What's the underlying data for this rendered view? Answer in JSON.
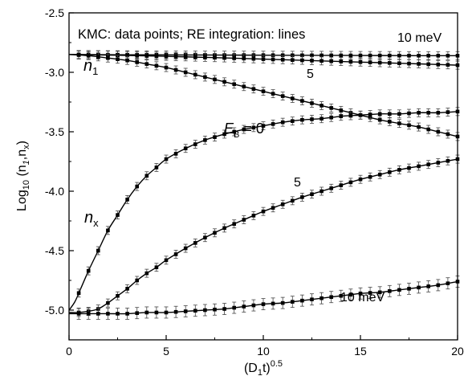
{
  "chart_data": {
    "type": "line",
    "annotation": "KMC: data points; RE integration: lines",
    "xlim": [
      0,
      20
    ],
    "ylim": [
      -5.25,
      -2.5
    ],
    "x_ticks": [
      0,
      5,
      10,
      15,
      20
    ],
    "y_ticks": [
      -2.5,
      -3.0,
      -3.5,
      -4.0,
      -4.5,
      -5.0
    ],
    "x_tick_labels": [
      "0",
      "5",
      "10",
      "15",
      "20"
    ],
    "y_tick_labels": [
      "-2.5",
      "-3.0",
      "-3.5",
      "-4.0",
      "-4.5",
      "-5.0"
    ],
    "xlabel": {
      "base": "(D",
      "sub": "1",
      "mid": "t)",
      "sup": "0.5"
    },
    "ylabel": {
      "base": "Log",
      "sub": "10",
      "rest": " (n",
      "sub2": "1",
      "rest2": ",n",
      "sub3": "x",
      "close": ")"
    },
    "labels": {
      "n1": {
        "main": "n",
        "sub": "1"
      },
      "nx": {
        "main": "n",
        "sub": "x"
      },
      "eb": {
        "main": "E",
        "sub": "B",
        "rest": " = 0"
      },
      "n1_5": "5",
      "n1_10": "10 meV",
      "nx_5": "5",
      "nx_10": "10 meV"
    },
    "series": [
      {
        "group": "n1",
        "eb_meV": 10,
        "x": [
          0,
          2,
          4,
          6,
          8,
          10,
          12,
          14,
          16,
          18,
          20
        ],
        "y": [
          -2.85,
          -2.852,
          -2.853,
          -2.854,
          -2.855,
          -2.856,
          -2.857,
          -2.858,
          -2.859,
          -2.86,
          -2.86
        ]
      },
      {
        "group": "n1",
        "eb_meV": 5,
        "x": [
          0,
          2,
          4,
          6,
          8,
          10,
          12,
          14,
          16,
          18,
          20
        ],
        "y": [
          -2.85,
          -2.855,
          -2.862,
          -2.87,
          -2.879,
          -2.889,
          -2.899,
          -2.909,
          -2.919,
          -2.929,
          -2.94
        ]
      },
      {
        "group": "n1",
        "eb_meV": 0,
        "x": [
          0,
          1,
          2,
          3,
          4,
          5,
          6,
          7,
          8,
          9,
          10,
          11,
          12,
          13,
          14,
          15,
          16,
          17,
          18,
          19,
          20
        ],
        "y": [
          -2.85,
          -2.86,
          -2.88,
          -2.9,
          -2.93,
          -2.96,
          -3.0,
          -3.04,
          -3.08,
          -3.12,
          -3.16,
          -3.2,
          -3.24,
          -3.28,
          -3.32,
          -3.36,
          -3.4,
          -3.43,
          -3.46,
          -3.5,
          -3.54
        ]
      },
      {
        "group": "nx",
        "eb_meV": 0,
        "x": [
          0,
          0.3,
          0.6,
          1,
          1.5,
          2,
          2.5,
          3,
          3.5,
          4,
          4.5,
          5,
          6,
          7,
          8,
          9,
          10,
          11,
          12,
          13,
          14,
          15,
          16,
          17,
          18,
          19,
          20
        ],
        "y": [
          -5.0,
          -4.93,
          -4.82,
          -4.67,
          -4.5,
          -4.33,
          -4.2,
          -4.07,
          -3.96,
          -3.87,
          -3.8,
          -3.73,
          -3.64,
          -3.57,
          -3.52,
          -3.48,
          -3.45,
          -3.42,
          -3.4,
          -3.39,
          -3.37,
          -3.36,
          -3.35,
          -3.35,
          -3.34,
          -3.34,
          -3.33
        ]
      },
      {
        "group": "nx",
        "eb_meV": 5,
        "x": [
          0,
          0.5,
          1,
          1.5,
          2,
          2.5,
          3,
          3.5,
          4,
          4.5,
          5,
          6,
          7,
          8,
          9,
          10,
          11,
          12,
          13,
          14,
          15,
          16,
          17,
          18,
          19,
          20
        ],
        "y": [
          -5.02,
          -5.02,
          -5.01,
          -4.99,
          -4.94,
          -4.88,
          -4.82,
          -4.75,
          -4.69,
          -4.64,
          -4.58,
          -4.48,
          -4.39,
          -4.31,
          -4.24,
          -4.17,
          -4.11,
          -4.05,
          -4.0,
          -3.95,
          -3.9,
          -3.86,
          -3.82,
          -3.79,
          -3.76,
          -3.73
        ]
      },
      {
        "group": "nx",
        "eb_meV": 10,
        "x": [
          0,
          1,
          2,
          3,
          4,
          5,
          6,
          7,
          8,
          9,
          10,
          11,
          12,
          13,
          14,
          15,
          16,
          17,
          18,
          19,
          20
        ],
        "y": [
          -5.03,
          -5.03,
          -5.03,
          -5.03,
          -5.02,
          -5.02,
          -5.01,
          -5.0,
          -4.99,
          -4.97,
          -4.95,
          -4.94,
          -4.92,
          -4.9,
          -4.88,
          -4.86,
          -4.85,
          -4.83,
          -4.81,
          -4.79,
          -4.76
        ]
      }
    ]
  }
}
